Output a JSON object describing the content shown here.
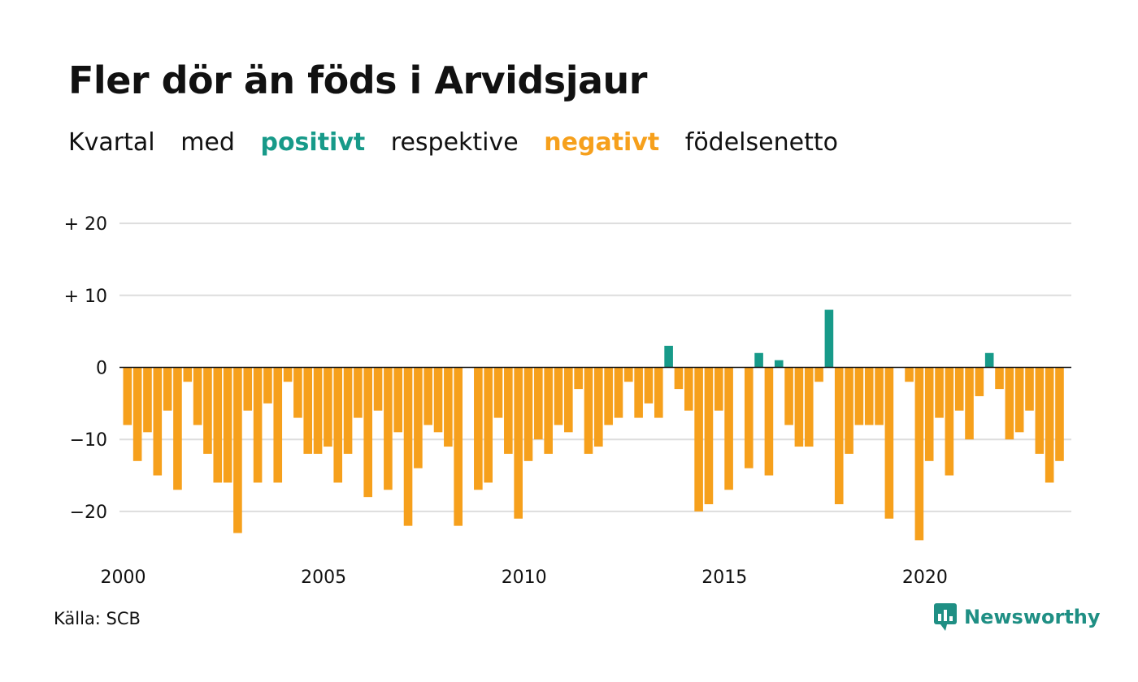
{
  "title": "Fler dör än föds i Arvidsjaur",
  "subtitle": {
    "part1": "Kvartal",
    "part2": "med",
    "positive_word": "positivt",
    "part3": "respektive",
    "negative_word": "negativt",
    "part4": "födelsenetto"
  },
  "source": "Källa: SCB",
  "brand": "Newsworthy",
  "colors": {
    "positive": "#179a89",
    "negative": "#f6a01c",
    "grid": "#dddddd",
    "brand": "#1f8f84"
  },
  "chart_data": {
    "type": "bar",
    "ylim": [
      -25,
      20
    ],
    "yticks": [
      20,
      10,
      0,
      -10,
      -20
    ],
    "ytick_labels": [
      "+ 20",
      "+ 10",
      "0",
      "−10",
      "−20"
    ],
    "xtick_labels": [
      "2000",
      "2005",
      "2010",
      "2015",
      "2020"
    ],
    "grid": true,
    "start_period": "2000 Q1",
    "values": [
      -8,
      -13,
      -9,
      -15,
      -6,
      -17,
      -2,
      -8,
      -12,
      -16,
      -16,
      -23,
      -6,
      -16,
      -5,
      -16,
      -2,
      -7,
      -12,
      -12,
      -11,
      -16,
      -12,
      -7,
      -18,
      -6,
      -17,
      -9,
      -22,
      -14,
      -8,
      -9,
      -11,
      -22,
      0,
      -17,
      -16,
      -7,
      -12,
      -21,
      -13,
      -10,
      -12,
      -8,
      -9,
      -3,
      -12,
      -11,
      -8,
      -7,
      -2,
      -7,
      -5,
      -7,
      3,
      -3,
      -6,
      -20,
      -19,
      -6,
      -17,
      0,
      -14,
      2,
      -15,
      1,
      -8,
      -11,
      -11,
      -2,
      8,
      -19,
      -12,
      -8,
      -8,
      -8,
      -21,
      0,
      -2,
      -24,
      -13,
      -7,
      -15,
      -6,
      -10,
      -4,
      2,
      -3,
      -10,
      -9,
      -6,
      -12,
      -16,
      -13
    ]
  }
}
